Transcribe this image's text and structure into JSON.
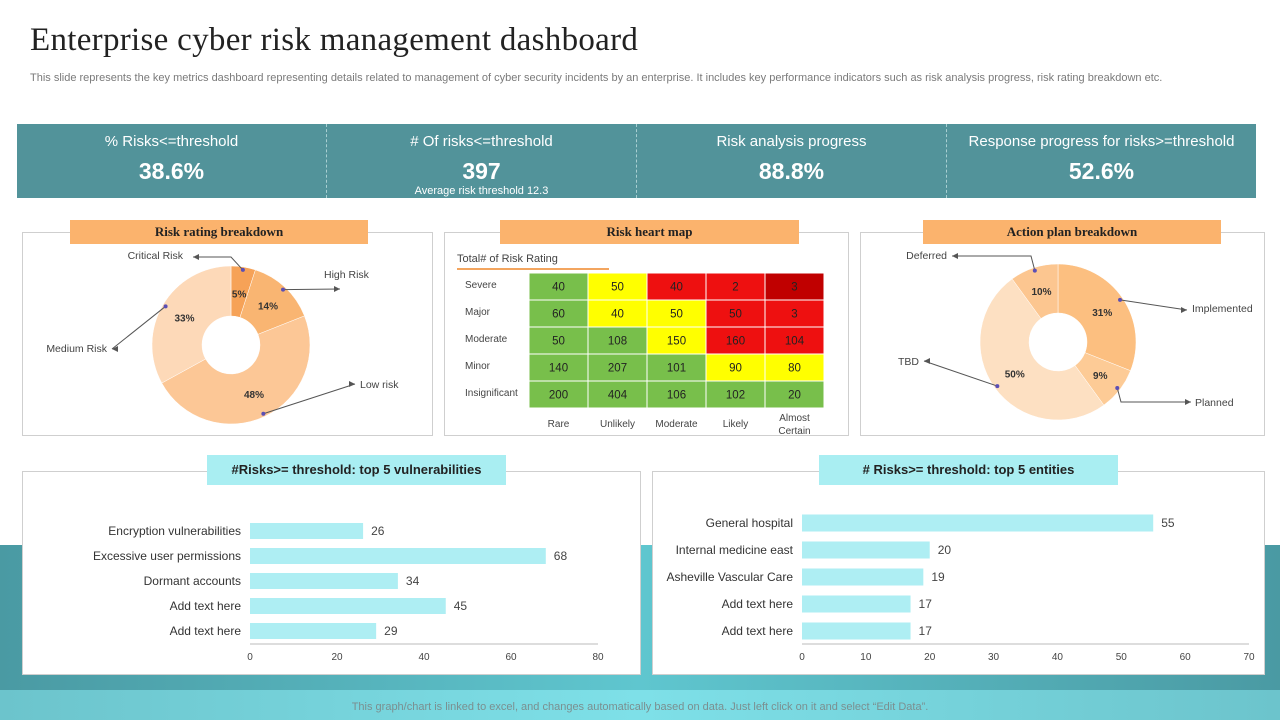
{
  "title": "Enterprise cyber risk management dashboard",
  "subtitle": "This slide represents the key metrics dashboard representing details related to management of cyber security incidents by an enterprise. It includes key performance indicators such as risk analysis progress, risk rating breakdown etc.",
  "kpis": [
    {
      "label": "% Risks<=threshold",
      "value": "38.6%"
    },
    {
      "label": "# Of risks<=threshold",
      "value": "397",
      "note": "Average risk threshold 12.3"
    },
    {
      "label": "Risk analysis progress",
      "value": "88.8%"
    },
    {
      "label": "Response progress for risks>=threshold",
      "value": "52.6%"
    }
  ],
  "colors": {
    "kpi_bg": "#52939a",
    "orange_head": "#fbb36d",
    "cyan_head": "#a9eef2",
    "bar": "#aeeef3"
  },
  "chart_data": [
    {
      "type": "pie",
      "title": "Risk rating breakdown",
      "donut": true,
      "slices": [
        {
          "label": "Critical Risk",
          "value": 5,
          "display": "5%",
          "color": "#f6a257"
        },
        {
          "label": "High Risk",
          "value": 14,
          "display": "14%",
          "color": "#f9b572"
        },
        {
          "label": "Low risk",
          "value": 48,
          "display": "48%",
          "color": "#fcc796"
        },
        {
          "label": "Medium Risk",
          "value": 33,
          "display": "33%",
          "color": "#fdd9b8"
        }
      ]
    },
    {
      "type": "heatmap",
      "title": "Risk heart map",
      "subtitle": "Total# of Risk Rating",
      "rows": [
        "Severe",
        "Major",
        "Moderate",
        "Minor",
        "Insignificant"
      ],
      "cols": [
        "Rare",
        "Unlikely",
        "Moderate",
        "Likely",
        "Almost Certain"
      ],
      "values": [
        [
          40,
          50,
          40,
          2,
          3
        ],
        [
          60,
          40,
          50,
          50,
          3
        ],
        [
          50,
          108,
          150,
          160,
          104
        ],
        [
          140,
          207,
          101,
          90,
          80
        ],
        [
          200,
          404,
          106,
          102,
          20
        ]
      ],
      "colors": [
        [
          "#78bf4b",
          "#ffff00",
          "#ee1010",
          "#ee1010",
          "#c00000"
        ],
        [
          "#78bf4b",
          "#ffff00",
          "#ffff00",
          "#ee1010",
          "#ee1010"
        ],
        [
          "#78bf4b",
          "#78bf4b",
          "#ffff00",
          "#ee1010",
          "#ee1010"
        ],
        [
          "#78bf4b",
          "#78bf4b",
          "#78bf4b",
          "#ffff00",
          "#ffff00"
        ],
        [
          "#78bf4b",
          "#78bf4b",
          "#78bf4b",
          "#78bf4b",
          "#78bf4b"
        ]
      ]
    },
    {
      "type": "pie",
      "title": "Action plan breakdown",
      "donut": true,
      "slices": [
        {
          "label": "Implemented",
          "value": 31,
          "display": "31%",
          "color": "#fcbf80"
        },
        {
          "label": "Planned",
          "value": 9,
          "display": "9%",
          "color": "#fdcb96"
        },
        {
          "label": "TBD",
          "value": 50,
          "display": "50%",
          "color": "#fde0c2"
        },
        {
          "label": "Deferred",
          "value": 10,
          "display": "10%",
          "color": "#fcc690"
        }
      ]
    },
    {
      "type": "bar",
      "orientation": "horizontal",
      "title": "#Risks>= threshold: top 5 vulnerabilities",
      "categories": [
        "Encryption vulnerabilities",
        "Excessive user permissions",
        "Dormant accounts",
        "Add text here",
        "Add text here"
      ],
      "values": [
        26,
        68,
        34,
        45,
        29
      ],
      "xlim": [
        0,
        80
      ],
      "ticks": [
        0,
        20,
        40,
        60,
        80
      ]
    },
    {
      "type": "bar",
      "orientation": "horizontal",
      "title": "# Risks>=  threshold: top 5 entities",
      "categories": [
        "General hospital",
        "Internal medicine east",
        "Asheville Vascular Care",
        "Add text here",
        "Add text here"
      ],
      "values": [
        55,
        20,
        19,
        17,
        17
      ],
      "xlim": [
        0,
        70
      ],
      "ticks": [
        0,
        10,
        20,
        30,
        40,
        50,
        60,
        70
      ]
    }
  ],
  "footer": "This graph/chart is linked to excel, and changes automatically based on data. Just left click on it and select “Edit Data”."
}
